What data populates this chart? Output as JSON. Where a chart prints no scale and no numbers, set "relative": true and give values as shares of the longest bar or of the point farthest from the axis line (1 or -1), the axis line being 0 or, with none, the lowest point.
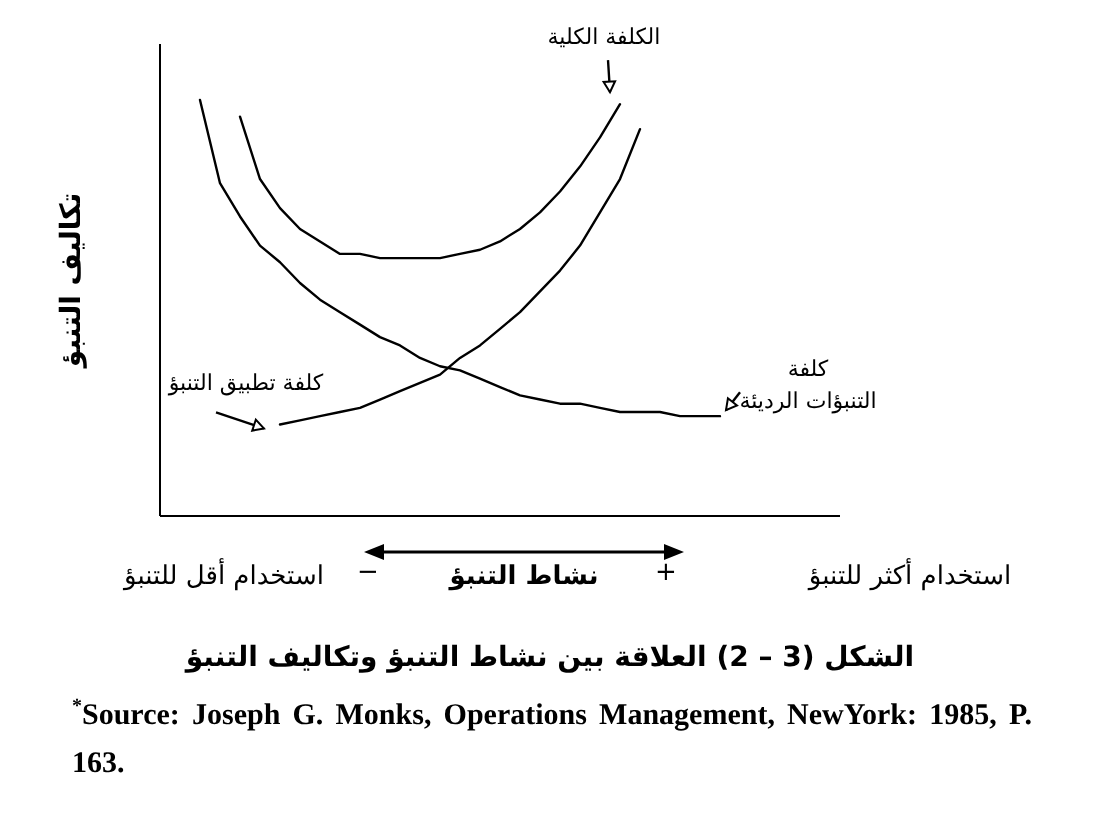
{
  "chart_data": {
    "type": "line",
    "relative": true,
    "marker": "none",
    "line_style": "solid",
    "title": "الشكل (3 – 2) العلاقة بين نشاط التنبؤ وتكاليف التنبؤ",
    "xlabel": "نشاط التنبؤ",
    "ylabel": "تكاليف التنبؤ",
    "categories": [
      null,
      null,
      null,
      null,
      null,
      null,
      null,
      null,
      null,
      null,
      null,
      null,
      null,
      null,
      null,
      null,
      null,
      null,
      null,
      null,
      null,
      null,
      null,
      null,
      null,
      null,
      null
    ],
    "series": [
      {
        "name": "الكلفة الكلية",
        "color": "#000000",
        "values": [
          null,
          null,
          0.96,
          0.81,
          0.74,
          0.69,
          0.66,
          0.63,
          0.63,
          0.62,
          0.62,
          0.62,
          0.62,
          0.63,
          0.64,
          0.66,
          0.69,
          0.73,
          0.78,
          0.84,
          0.91,
          0.99,
          null,
          null,
          null,
          null,
          null
        ]
      },
      {
        "name": "كلفة التنبؤات الرديئة",
        "color": "#000000",
        "values": [
          1.0,
          0.8,
          0.72,
          0.65,
          0.61,
          0.56,
          0.52,
          0.49,
          0.46,
          0.43,
          0.41,
          0.38,
          0.36,
          0.35,
          0.33,
          0.31,
          0.29,
          0.28,
          0.27,
          0.27,
          0.26,
          0.25,
          0.25,
          0.25,
          0.24,
          0.24,
          0.24
        ]
      },
      {
        "name": "كلفة تطبيق التنبؤ",
        "color": "#000000",
        "values": [
          null,
          null,
          null,
          null,
          0.22,
          0.23,
          0.24,
          0.25,
          0.26,
          0.28,
          0.3,
          0.32,
          0.34,
          0.38,
          0.41,
          0.45,
          0.49,
          0.54,
          0.59,
          0.65,
          0.73,
          0.81,
          0.93,
          null,
          null,
          null,
          null
        ]
      }
    ],
    "annotations": [
      "−",
      "+",
      "استخدام أقل للتنبؤ",
      "استخدام أكثر للتنبؤ",
      "$^{*}$Source: Joseph G. Monks, Operations Management, NewYork: 1985, P. 163."
    ]
  }
}
